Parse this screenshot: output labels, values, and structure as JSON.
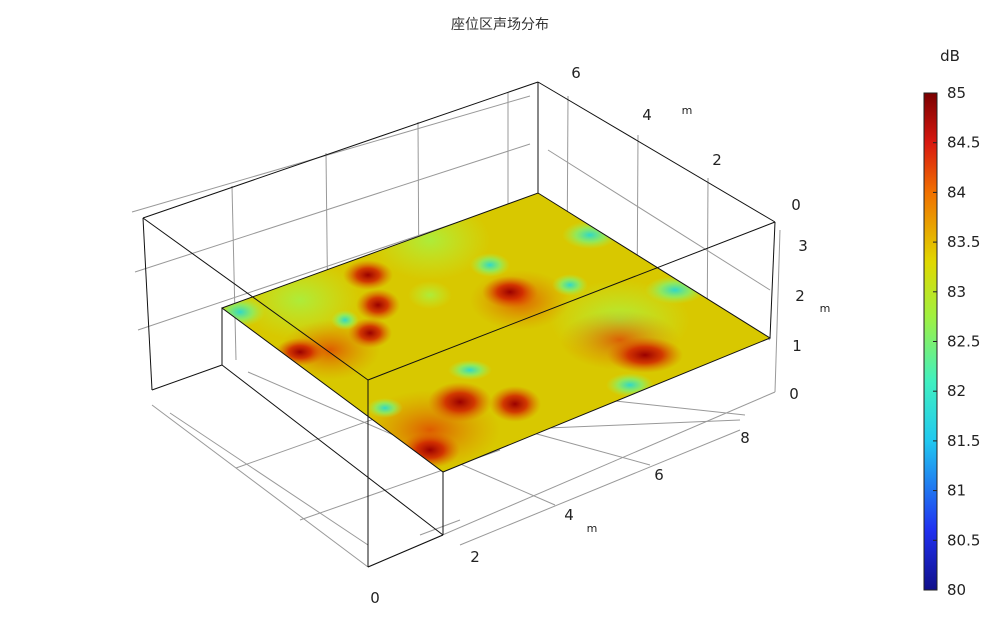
{
  "chart_data": {
    "type": "heatmap",
    "title": "座位区声场分布",
    "colorbar": {
      "unit": "dB",
      "range": [
        80,
        85
      ],
      "ticks": [
        "85",
        "84.5",
        "84",
        "83.5",
        "83",
        "82.5",
        "82",
        "81.5",
        "81",
        "80.5",
        "80"
      ],
      "colormap": [
        "#00007f",
        "#0000ff",
        "#00bfff",
        "#40ffbf",
        "#bfff40",
        "#ffdf00",
        "#ff4000",
        "#7f0000"
      ]
    },
    "axes": {
      "x": {
        "ticks": [
          "0",
          "2",
          "4",
          "6",
          "8"
        ],
        "unit": "m"
      },
      "y": {
        "ticks": [
          "6",
          "4",
          "2",
          "0"
        ],
        "unit": "m"
      },
      "z": {
        "ticks": [
          "3",
          "2",
          "1",
          "0"
        ],
        "unit": "m"
      }
    },
    "grid": true
  }
}
